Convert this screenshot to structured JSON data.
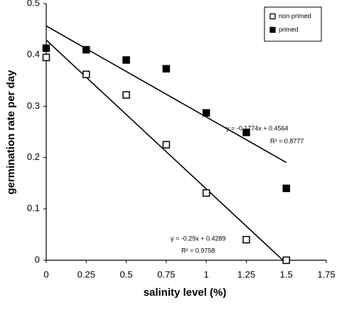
{
  "chart_data": {
    "type": "scatter",
    "xlabel": "salinity level (%)",
    "ylabel": "germination rate per day",
    "x": [
      0,
      0.25,
      0.5,
      0.75,
      1,
      1.25,
      1.5
    ],
    "series": [
      {
        "name": "non-primed",
        "color": "#ffffff",
        "values": [
          0.395,
          0.362,
          0.322,
          0.225,
          0.131,
          0.04,
          0.0
        ]
      },
      {
        "name": "primed",
        "color": "#000000",
        "values": [
          0.413,
          0.41,
          0.39,
          0.373,
          0.287,
          0.249,
          0.14
        ]
      }
    ],
    "trendlines": [
      {
        "slope": -0.29,
        "intercept": 0.4289,
        "equation": "y = -0.29x + 0.4289",
        "r2": "R² = 0.9758"
      },
      {
        "slope": -0.1774,
        "intercept": 0.4564,
        "equation": "y = -0.1774x + 0.4564",
        "r2": "R² = 0.8777"
      }
    ],
    "xlim": [
      0,
      1.75
    ],
    "xticks": [
      0,
      0.25,
      0.5,
      0.75,
      1,
      1.25,
      1.5,
      1.75
    ],
    "ylim": [
      0,
      0.5
    ],
    "yticks": [
      0,
      0.1,
      0.2,
      0.3,
      0.4,
      0.5
    ],
    "legend": "upper right"
  }
}
